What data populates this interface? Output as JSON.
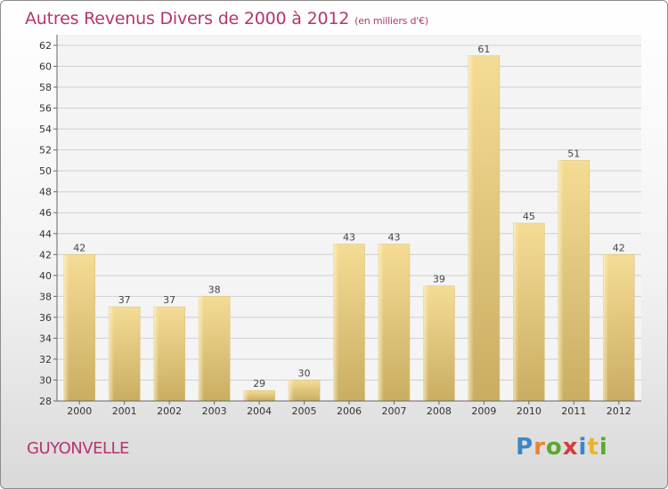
{
  "title": "Autres Revenus Divers de 2000 à 2012",
  "unit": "(en milliers d'€)",
  "commune": "GUYONVELLE",
  "logo": {
    "letters": [
      "P",
      "r",
      "o",
      "x",
      "i",
      "t",
      "i"
    ],
    "colors": [
      "#3a87c8",
      "#e8862a",
      "#5aa832",
      "#d63b3b",
      "#3a87c8",
      "#e8b62a",
      "#5aa832"
    ]
  },
  "chart_data": {
    "type": "bar",
    "title": "Autres Revenus Divers de 2000 à 2012",
    "categories": [
      "2000",
      "2001",
      "2002",
      "2003",
      "2004",
      "2005",
      "2006",
      "2007",
      "2008",
      "2009",
      "2010",
      "2011",
      "2012"
    ],
    "values": [
      42,
      37,
      37,
      38,
      29,
      30,
      43,
      43,
      39,
      61,
      45,
      51,
      42
    ],
    "ylim": [
      28,
      62
    ],
    "yticks": [
      28,
      30,
      32,
      34,
      36,
      38,
      40,
      42,
      44,
      46,
      48,
      50,
      52,
      54,
      56,
      58,
      60,
      62
    ],
    "grid": true,
    "bar_color": "#e8cf86"
  }
}
